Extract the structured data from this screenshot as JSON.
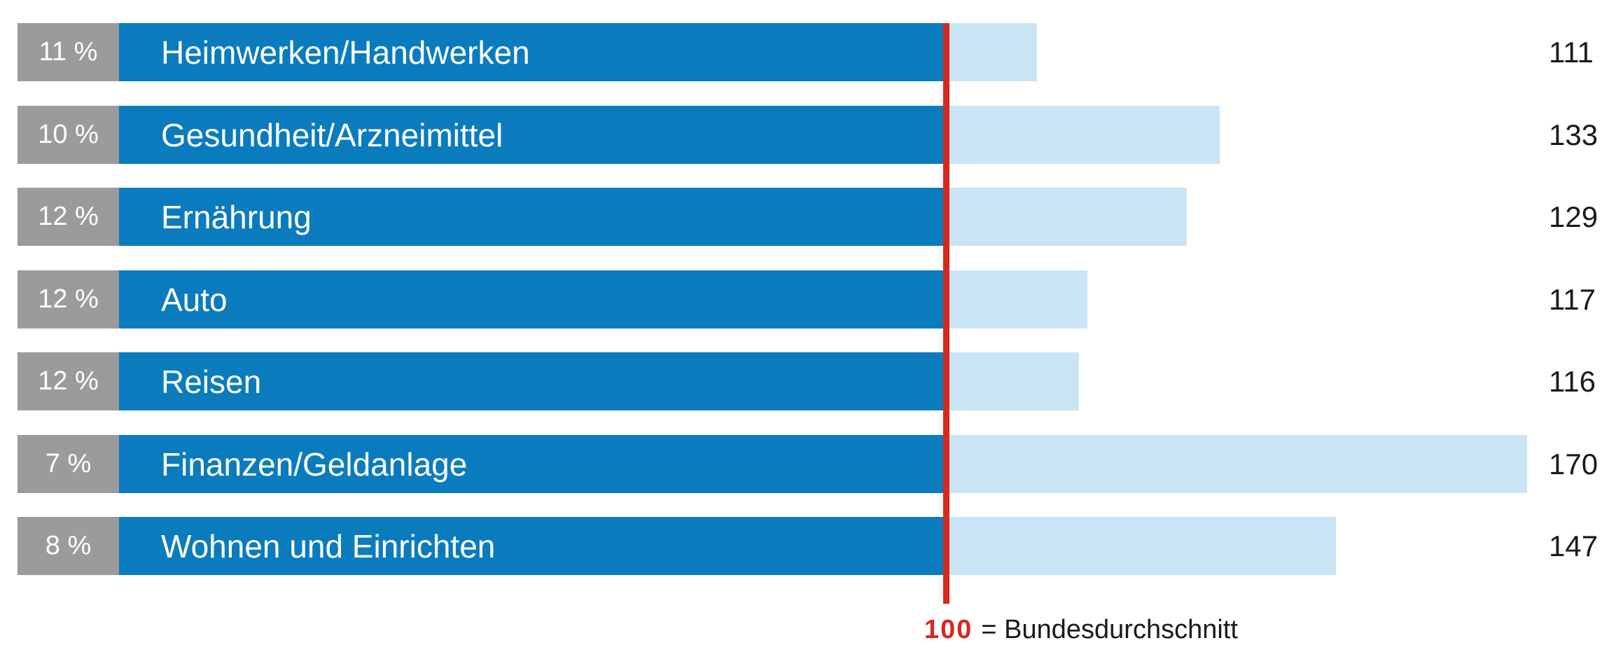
{
  "rows": [
    {
      "percent": "11 %",
      "label": "Heimwerken/Handwerken",
      "index": 111
    },
    {
      "percent": "10 %",
      "label": "Gesundheit/Arzneimittel",
      "index": 133
    },
    {
      "percent": "12 %",
      "label": "Ernährung",
      "index": 129
    },
    {
      "percent": "12 %",
      "label": "Auto",
      "index": 117
    },
    {
      "percent": "12 %",
      "label": "Reisen",
      "index": 116
    },
    {
      "percent": "7 %",
      "label": "Finanzen/Geldanlage",
      "index": 170
    },
    {
      "percent": "8 %",
      "label": "Wohnen und Einrichten",
      "index": 147
    }
  ],
  "legend": {
    "value": "100",
    "text": "= Bundesdurchschnitt"
  },
  "colors": {
    "dark_blue": "#0a7cbe",
    "light_blue": "#c9e4f5",
    "gray": "#9b9b9b",
    "red": "#d6291e",
    "text": "#1a1a1a",
    "background": "#ffffff"
  },
  "chart_data": {
    "type": "bar",
    "orientation": "horizontal",
    "categories": [
      "Heimwerken/Handwerken",
      "Gesundheit/Arzneimittel",
      "Ernährung",
      "Auto",
      "Reisen",
      "Finanzen/Geldanlage",
      "Wohnen und Einrichten"
    ],
    "series": [
      {
        "name": "percent_share",
        "unit": "%",
        "values": [
          11,
          10,
          12,
          12,
          12,
          7,
          8
        ]
      },
      {
        "name": "index",
        "unit": "",
        "values": [
          111,
          133,
          129,
          117,
          116,
          170,
          147
        ]
      }
    ],
    "reference_line": {
      "value": 100,
      "label": "Bundesdurchschnitt",
      "color": "#d6291e"
    },
    "title": "",
    "xlabel": "",
    "ylabel": "",
    "index_axis_range": [
      100,
      180
    ],
    "grid": false,
    "legend_position": "bottom",
    "legend_text": "100 = Bundesdurchschnitt",
    "bar_colors": {
      "label_band": "#0a7cbe",
      "index_bar": "#c9e4f5",
      "percent_badge": "#9b9b9b"
    }
  }
}
